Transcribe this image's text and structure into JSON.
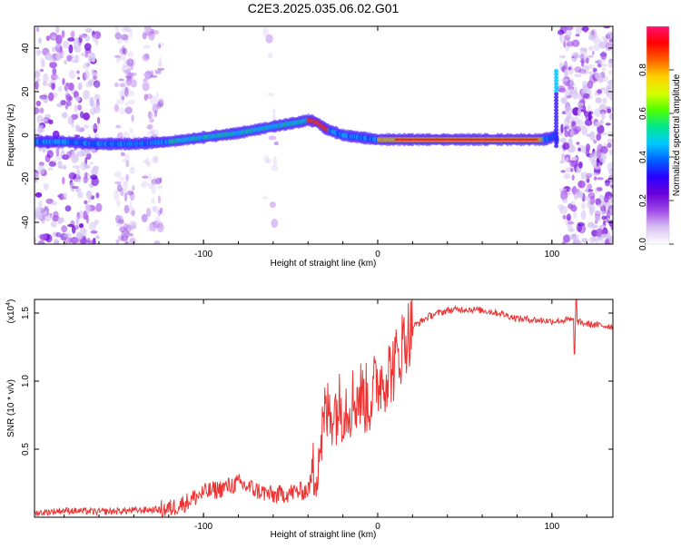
{
  "figure": {
    "title": "C2E3.2025.035.06.02.G01"
  },
  "chart_data": [
    {
      "type": "heatmap",
      "xlabel": "Height of straight line (km)",
      "ylabel": "Frequency (Hz)",
      "xlim": [
        -197,
        135
      ],
      "ylim": [
        -50,
        50
      ],
      "xticks": [
        -100,
        0,
        100
      ],
      "yticks": [
        -40,
        -20,
        0,
        20,
        40
      ],
      "grid": false,
      "colorbar": {
        "label": "Normalized spectral amplitude",
        "range": [
          0,
          1
        ],
        "ticks": [
          0.0,
          0.2,
          0.4,
          0.6,
          0.8
        ],
        "colors": [
          "#ffffff",
          "#d9c2f2",
          "#a04ae8",
          "#6a00d8",
          "#2b00ff",
          "#0060ff",
          "#00c8ff",
          "#00e890",
          "#50ff00",
          "#d8ff00",
          "#ffd000",
          "#ff6000",
          "#ff0000",
          "#ff1070"
        ]
      },
      "ridge": {
        "x": [
          -197,
          -180,
          -160,
          -140,
          -120,
          -100,
          -80,
          -60,
          -45,
          -40,
          -35,
          -30,
          -20,
          -10,
          0,
          20,
          40,
          60,
          80,
          95,
          100,
          102,
          104
        ],
        "y": [
          -3,
          -3,
          -4,
          -4,
          -3,
          -1,
          1,
          4,
          6,
          7,
          6,
          3,
          0,
          -1,
          -2,
          -2,
          -2,
          -2,
          -2,
          -2,
          -1,
          0,
          -4
        ]
      }
    },
    {
      "type": "line",
      "xlabel": "Height of straight line (km)",
      "ylabel": "SNR (10 * v/v)",
      "yscale_label": "(x10",
      "yscale_exp": "4",
      "xlim": [
        -197,
        135
      ],
      "ylim": [
        0,
        1.6
      ],
      "xticks": [
        -100,
        0,
        100
      ],
      "yticks": [
        0.5,
        1.0,
        1.5
      ],
      "ytick_labels": [
        "0.5",
        "1.0",
        "1.5"
      ],
      "color": "#ee3333",
      "x": [
        -197,
        -180,
        -160,
        -140,
        -120,
        -110,
        -100,
        -90,
        -80,
        -70,
        -60,
        -50,
        -40,
        -35,
        -30,
        -25,
        -20,
        -15,
        -10,
        -5,
        0,
        5,
        10,
        15,
        20,
        30,
        40,
        50,
        60,
        70,
        80,
        90,
        100,
        110,
        120,
        135
      ],
      "values": [
        0.03,
        0.05,
        0.04,
        0.05,
        0.06,
        0.11,
        0.18,
        0.21,
        0.25,
        0.2,
        0.16,
        0.18,
        0.2,
        0.4,
        0.75,
        0.8,
        0.82,
        0.85,
        0.9,
        0.85,
        1.0,
        1.05,
        1.12,
        1.3,
        1.4,
        1.48,
        1.52,
        1.53,
        1.52,
        1.5,
        1.46,
        1.45,
        1.44,
        1.45,
        1.42,
        1.4
      ]
    }
  ]
}
